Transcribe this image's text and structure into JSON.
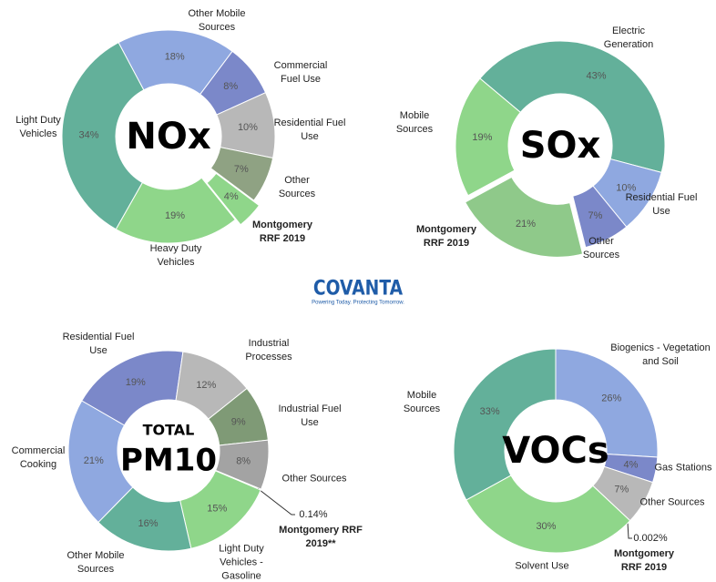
{
  "chart_data": [
    {
      "type": "pie",
      "title": "NOx",
      "categories": [
        "Other Mobile Sources",
        "Commercial Fuel Use",
        "Residential Fuel Use",
        "Other Sources",
        "Montgomery RRF 2019",
        "Heavy Duty Vehicles",
        "Light Duty Vehicles"
      ],
      "values": [
        18,
        8,
        10,
        7,
        4,
        19,
        34
      ],
      "value_labels": [
        "18%",
        "8%",
        "10%",
        "7%",
        "4%",
        "19%",
        "34%"
      ],
      "colors": [
        "#8fa8e0",
        "#7b88c9",
        "#b8b8b8",
        "#8fa283",
        "#8fd68a",
        "#8fd68a",
        "#63b09a"
      ]
    },
    {
      "type": "pie",
      "title": "SOx",
      "categories": [
        "Electric Generation",
        "Residential Fuel Use",
        "Other Sources",
        "Montgomery RRF 2019",
        "Mobile Sources"
      ],
      "values": [
        43,
        10,
        7,
        21,
        19
      ],
      "value_labels": [
        "43%",
        "10%",
        "7%",
        "21%",
        "19%"
      ],
      "colors": [
        "#63b09a",
        "#8fa8e0",
        "#7b88c9",
        "#8fc98a",
        "#8fd68a"
      ]
    },
    {
      "type": "pie",
      "title_top": "TOTAL",
      "title": "PM10",
      "categories": [
        "Residential Fuel Use",
        "Industrial Processes",
        "Industrial Fuel Use",
        "Other Sources",
        "Montgomery RRF 2019**",
        "Light Duty Vehicles - Gasoline",
        "Other Mobile Sources",
        "Commercial Cooking"
      ],
      "values": [
        19,
        12,
        9,
        8,
        0.14,
        15,
        16,
        21
      ],
      "value_labels": [
        "19%",
        "12%",
        "9%",
        "8%",
        "0.14%",
        "15%",
        "16%",
        "21%"
      ],
      "colors": [
        "#7b88c9",
        "#b8b8b8",
        "#7f9a76",
        "#a3a3a3",
        "#8fd68a",
        "#8fd68a",
        "#63b09a",
        "#8fa8e0"
      ]
    },
    {
      "type": "pie",
      "title": "VOCs",
      "categories": [
        "Biogenics - Vegetation and Soil",
        "Gas Stations",
        "Other Sources",
        "Montgomery RRF 2019",
        "Solvent Use",
        "Mobile Sources"
      ],
      "values": [
        26,
        4,
        7,
        0.002,
        30,
        33
      ],
      "value_labels": [
        "26%",
        "4%",
        "7%",
        "0.002%",
        "30%",
        "33%"
      ],
      "colors": [
        "#8fa8e0",
        "#7b88c9",
        "#b8b8b8",
        "#8fd68a",
        "#8fd68a",
        "#63b09a"
      ]
    }
  ],
  "logo": {
    "name": "COVANTA",
    "tagline": "Powering Today. Protecting Tomorrow."
  }
}
